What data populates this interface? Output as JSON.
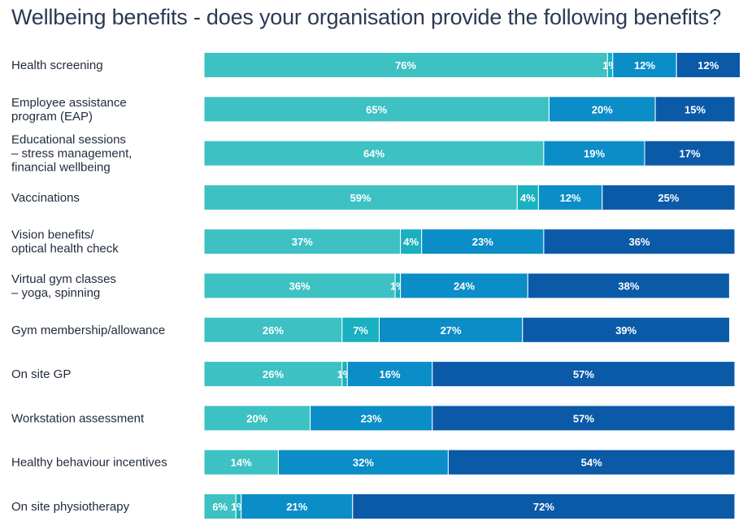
{
  "chart_data": {
    "type": "bar",
    "orientation": "horizontal",
    "stacked": true,
    "title": "Wellbeing benefits - does your organisation provide the following benefits?",
    "categories": [
      [
        "Health screening"
      ],
      [
        "Employee assistance",
        "program (EAP)"
      ],
      [
        "Educational sessions",
        "– stress management,",
        "financial wellbeing"
      ],
      [
        "Vaccinations"
      ],
      [
        "Vision benefits/",
        "optical health check"
      ],
      [
        "Virtual gym classes",
        "– yoga, spinning"
      ],
      [
        "Gym membership/allowance"
      ],
      [
        "On site GP"
      ],
      [
        "Workstation assessment"
      ],
      [
        "Healthy behaviour incentives"
      ],
      [
        "On site physiotherapy"
      ]
    ],
    "series": [
      {
        "values": [
          76,
          65,
          64,
          59,
          37,
          36,
          26,
          26,
          20,
          14,
          6
        ]
      },
      {
        "values": [
          1,
          0,
          0,
          4,
          4,
          1,
          7,
          1,
          0,
          0,
          1
        ]
      },
      {
        "values": [
          12,
          20,
          19,
          12,
          23,
          24,
          27,
          16,
          23,
          32,
          21
        ]
      },
      {
        "values": [
          12,
          15,
          17,
          25,
          36,
          38,
          39,
          57,
          57,
          54,
          72
        ]
      }
    ],
    "value_suffix": "%",
    "legend": "none",
    "grid": false,
    "colors": [
      "#3dc1c3",
      "#19b0c0",
      "#0b8dc7",
      "#0a5aa8"
    ]
  }
}
